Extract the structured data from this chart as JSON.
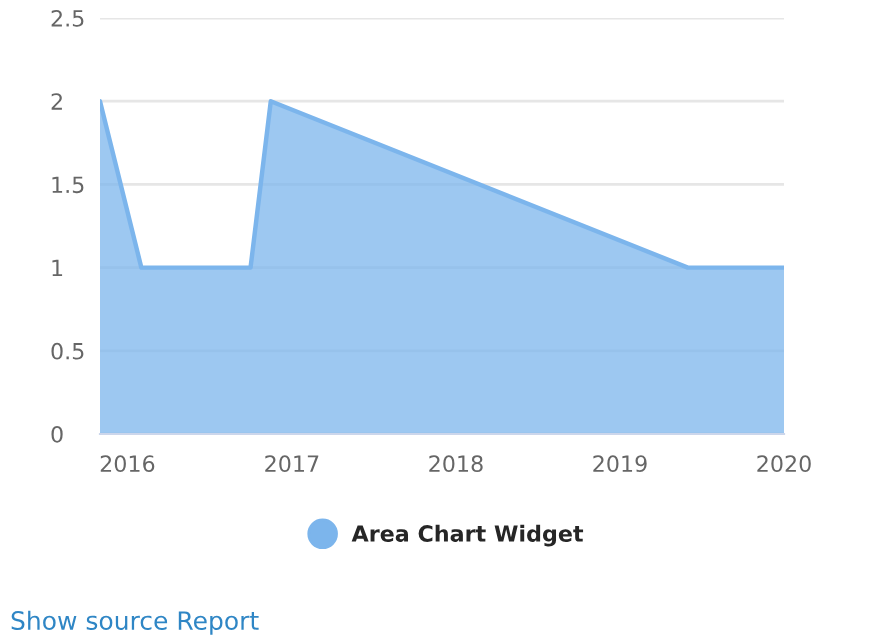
{
  "chart_data": {
    "type": "area",
    "x": [
      "2015-11",
      "2016-02",
      "2016-10",
      "2016-11-15",
      "2019-06",
      "2020-01"
    ],
    "series": [
      {
        "name": "Area Chart Widget",
        "color": "#7cb5ec",
        "values": [
          2,
          1,
          1,
          2,
          1,
          1
        ]
      }
    ],
    "xlim": [
      "2015-11",
      "2020-01"
    ],
    "xticks": [
      "2016",
      "2017",
      "2018",
      "2019",
      "2020"
    ],
    "ylim": [
      0,
      2.5
    ],
    "yticks": [
      0,
      0.5,
      1,
      1.5,
      2,
      2.5
    ],
    "grid": "y",
    "legend": "bottom",
    "annotations": [
      "Show source Report"
    ]
  }
}
